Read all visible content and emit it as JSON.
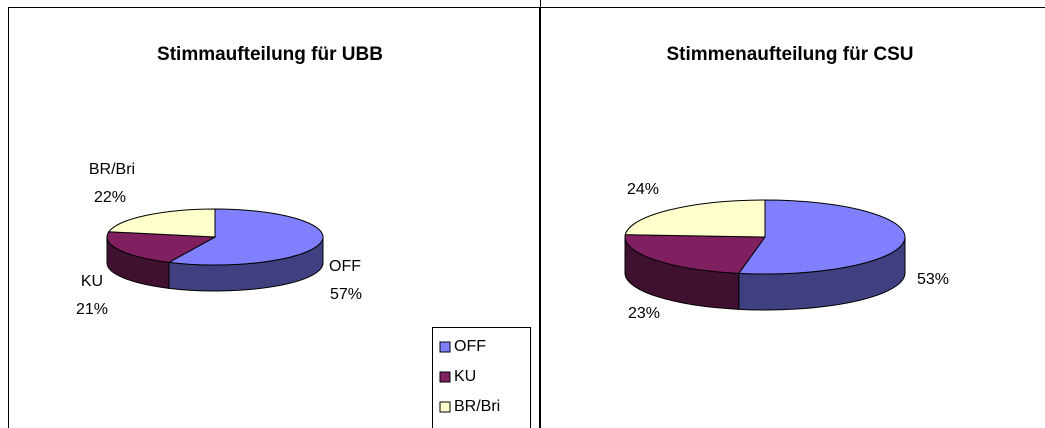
{
  "chart_data": [
    {
      "type": "pie",
      "title": "Stimmaufteilung für UBB",
      "categories": [
        "OFF",
        "KU",
        "BR/Bri"
      ],
      "values": [
        57,
        21,
        22
      ],
      "value_labels": [
        "57%",
        "21%",
        "22%"
      ],
      "colors": [
        "#8080ff",
        "#802060",
        "#ffffcc"
      ],
      "legend": "bottom-right"
    },
    {
      "type": "pie",
      "title": "Stimmenaufteilung für CSU",
      "values": [
        53,
        23,
        24
      ],
      "value_labels": [
        "53%",
        "23%",
        "24%"
      ],
      "colors": [
        "#8080ff",
        "#802060",
        "#ffffcc"
      ]
    }
  ]
}
